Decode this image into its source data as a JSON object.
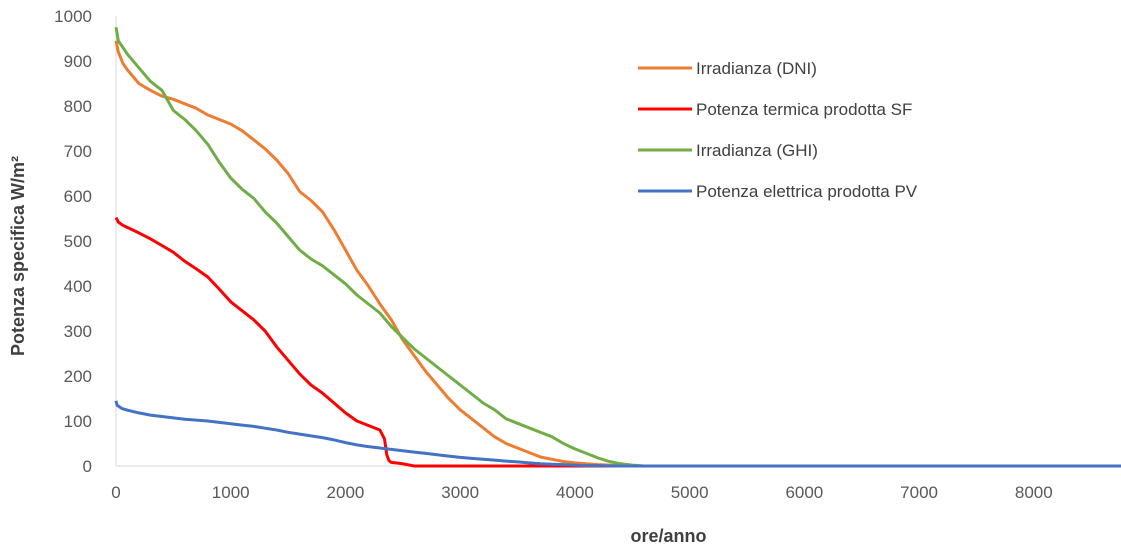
{
  "chart_data": {
    "type": "line",
    "title": "",
    "xlabel": "ore/anno",
    "ylabel": "Potenza specifica W/m²",
    "xlim": [
      0,
      8760
    ],
    "ylim": [
      0,
      1000
    ],
    "xticks": [
      0,
      1000,
      2000,
      3000,
      4000,
      5000,
      6000,
      7000,
      8000
    ],
    "yticks": [
      0,
      100,
      200,
      300,
      400,
      500,
      600,
      700,
      800,
      900,
      1000
    ],
    "grid": false,
    "legend_position": "right",
    "series": [
      {
        "name": "Irradianza (DNI)",
        "color": "#ED7D31",
        "x": [
          0,
          20,
          60,
          100,
          200,
          300,
          400,
          500,
          600,
          700,
          800,
          900,
          1000,
          1100,
          1200,
          1300,
          1400,
          1500,
          1600,
          1700,
          1800,
          1900,
          2000,
          2100,
          2200,
          2300,
          2400,
          2500,
          2600,
          2700,
          2800,
          2900,
          3000,
          3100,
          3200,
          3300,
          3400,
          3500,
          3600,
          3700,
          3800,
          3900,
          4000,
          4100,
          4200,
          4300,
          4400,
          4500,
          4600,
          4700,
          5000,
          6000,
          7000,
          8000,
          8760
        ],
        "y": [
          945,
          920,
          895,
          880,
          850,
          835,
          822,
          815,
          805,
          795,
          780,
          770,
          760,
          745,
          725,
          705,
          680,
          650,
          610,
          590,
          565,
          525,
          480,
          435,
          400,
          360,
          325,
          280,
          245,
          210,
          180,
          150,
          125,
          105,
          85,
          65,
          50,
          40,
          30,
          20,
          15,
          10,
          7,
          5,
          3,
          2,
          1,
          0,
          0,
          0,
          0,
          0,
          0,
          0,
          0
        ]
      },
      {
        "name": "Potenza termica prodotta SF",
        "color": "#FF0000",
        "x": [
          0,
          20,
          60,
          100,
          200,
          300,
          400,
          500,
          600,
          700,
          800,
          900,
          1000,
          1100,
          1200,
          1300,
          1400,
          1500,
          1600,
          1700,
          1800,
          1900,
          2000,
          2100,
          2200,
          2300,
          2340,
          2360,
          2380,
          2400,
          2500,
          2600,
          3000,
          4000,
          5000,
          6000,
          7000,
          8000,
          8760
        ],
        "y": [
          552,
          542,
          535,
          530,
          518,
          505,
          490,
          475,
          455,
          438,
          420,
          393,
          365,
          345,
          325,
          300,
          265,
          235,
          205,
          180,
          162,
          140,
          118,
          100,
          90,
          80,
          60,
          25,
          12,
          8,
          5,
          0,
          0,
          0,
          0,
          0,
          0,
          0,
          0
        ]
      },
      {
        "name": "Irradianza (GHI)",
        "color": "#70AD47",
        "x": [
          0,
          20,
          60,
          100,
          200,
          300,
          400,
          500,
          600,
          700,
          800,
          900,
          1000,
          1100,
          1200,
          1300,
          1400,
          1500,
          1600,
          1700,
          1800,
          1900,
          2000,
          2100,
          2200,
          2300,
          2400,
          2500,
          2600,
          2700,
          2800,
          2900,
          3000,
          3100,
          3200,
          3300,
          3400,
          3500,
          3600,
          3700,
          3800,
          3900,
          4000,
          4100,
          4200,
          4300,
          4400,
          4500,
          4600,
          4700,
          5000,
          6000,
          7000,
          8000,
          8760
        ],
        "y": [
          975,
          945,
          930,
          915,
          885,
          855,
          835,
          790,
          770,
          745,
          715,
          675,
          640,
          615,
          595,
          565,
          540,
          510,
          480,
          460,
          445,
          425,
          405,
          380,
          360,
          340,
          310,
          285,
          260,
          240,
          220,
          200,
          180,
          160,
          140,
          125,
          105,
          95,
          85,
          75,
          65,
          50,
          38,
          28,
          18,
          10,
          5,
          2,
          0,
          0,
          0,
          0,
          0,
          0,
          0
        ]
      },
      {
        "name": "Potenza elettrica prodotta PV",
        "color": "#4472C4",
        "x": [
          0,
          10,
          50,
          100,
          200,
          300,
          400,
          500,
          600,
          700,
          800,
          900,
          1000,
          1100,
          1200,
          1300,
          1400,
          1500,
          1600,
          1700,
          1800,
          1900,
          2000,
          2100,
          2200,
          2300,
          2400,
          2500,
          2600,
          2700,
          2800,
          2900,
          3000,
          3100,
          3200,
          3300,
          3400,
          3500,
          3600,
          3700,
          3800,
          3900,
          4000,
          4100,
          4200,
          4300,
          4400,
          4500,
          4600,
          4700,
          5000,
          6000,
          7000,
          8000,
          8760
        ],
        "y": [
          145,
          135,
          128,
          124,
          118,
          113,
          110,
          107,
          104,
          102,
          100,
          97,
          94,
          91,
          88,
          84,
          80,
          75,
          71,
          67,
          63,
          58,
          52,
          47,
          43,
          40,
          37,
          34,
          31,
          28,
          25,
          22,
          19,
          17,
          15,
          13,
          11,
          9,
          7,
          5,
          4,
          3,
          2,
          1,
          1,
          0,
          0,
          0,
          0,
          0,
          0,
          0,
          0,
          0,
          0
        ]
      }
    ]
  }
}
